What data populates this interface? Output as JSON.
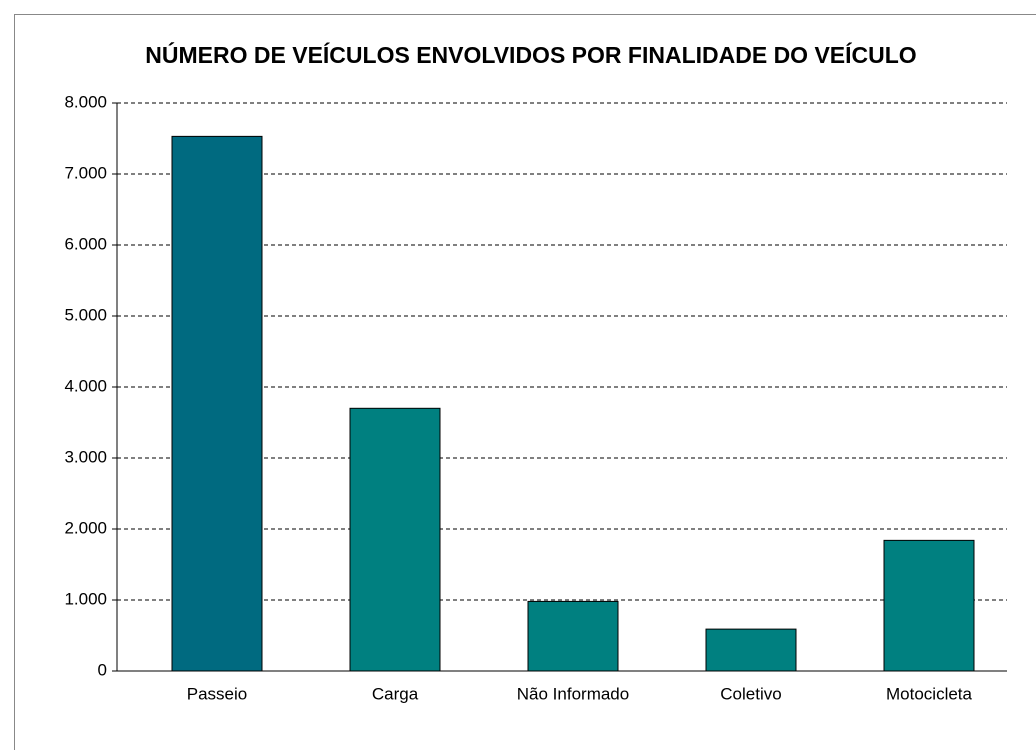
{
  "chart_data": {
    "type": "bar",
    "title": "NÚMERO DE VEÍCULOS ENVOLVIDOS POR FINALIDADE DO VEÍCULO",
    "categories": [
      "Passeio",
      "Carga",
      "Não Informado",
      "Coletivo",
      "Motocicleta"
    ],
    "values": [
      7530,
      3700,
      980,
      590,
      1840
    ],
    "colors": [
      "#006a80",
      "#008080",
      "#008080",
      "#008080",
      "#008080"
    ],
    "ylim": [
      0,
      8000
    ],
    "yticks": [
      0,
      {
        "value": 1000,
        "label": "1.000"
      },
      {
        "value": 2000,
        "label": "2.000"
      },
      {
        "value": 3000,
        "label": "3.000"
      },
      {
        "value": 4000,
        "label": "4.000"
      },
      {
        "value": 5000,
        "label": "5.000"
      },
      {
        "value": 6000,
        "label": "6.000"
      },
      {
        "value": 7000,
        "label": "7.000"
      },
      {
        "value": 8000,
        "label": "8.000"
      }
    ],
    "grid": true
  }
}
